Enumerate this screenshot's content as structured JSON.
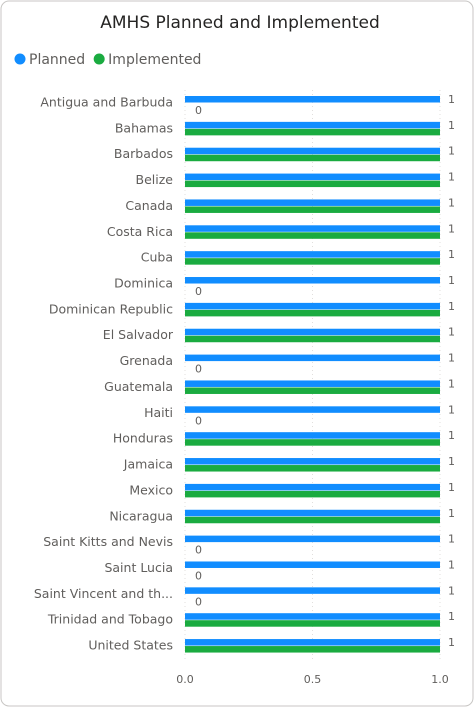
{
  "chart_data": {
    "type": "barh",
    "title": "AMHS Planned and Implemented",
    "categories": [
      "Antigua and Barbuda",
      "Bahamas",
      "Barbados",
      "Belize",
      "Canada",
      "Costa Rica",
      "Cuba",
      "Dominica",
      "Dominican Republic",
      "El Salvador",
      "Grenada",
      "Guatemala",
      "Haiti",
      "Honduras",
      "Jamaica",
      "Mexico",
      "Nicaragua",
      "Saint Kitts and Nevis",
      "Saint Lucia",
      "Saint Vincent and th...",
      "Trinidad and Tobago",
      "United States"
    ],
    "series": [
      {
        "name": "Planned",
        "color": "#118dff",
        "values": [
          1,
          1,
          1,
          1,
          1,
          1,
          1,
          1,
          1,
          1,
          1,
          1,
          1,
          1,
          1,
          1,
          1,
          1,
          1,
          1,
          1,
          1
        ]
      },
      {
        "name": "Implemented",
        "color": "#1aab40",
        "values": [
          0,
          1,
          1,
          1,
          1,
          1,
          1,
          0,
          1,
          1,
          0,
          1,
          0,
          1,
          1,
          1,
          1,
          0,
          0,
          0,
          1,
          1
        ],
        "value_labels": [
          "0",
          null,
          null,
          null,
          null,
          null,
          null,
          "0",
          null,
          null,
          "0",
          null,
          "0",
          null,
          null,
          null,
          null,
          "0",
          "0",
          "0",
          null,
          null
        ]
      }
    ],
    "xlim": [
      0,
      1
    ],
    "xticks": [
      {
        "value": 0,
        "label": "0.0"
      },
      {
        "value": 0.5,
        "label": "0.5"
      },
      {
        "value": 1,
        "label": "1.0"
      }
    ],
    "grid": true,
    "legend": "top-left"
  }
}
